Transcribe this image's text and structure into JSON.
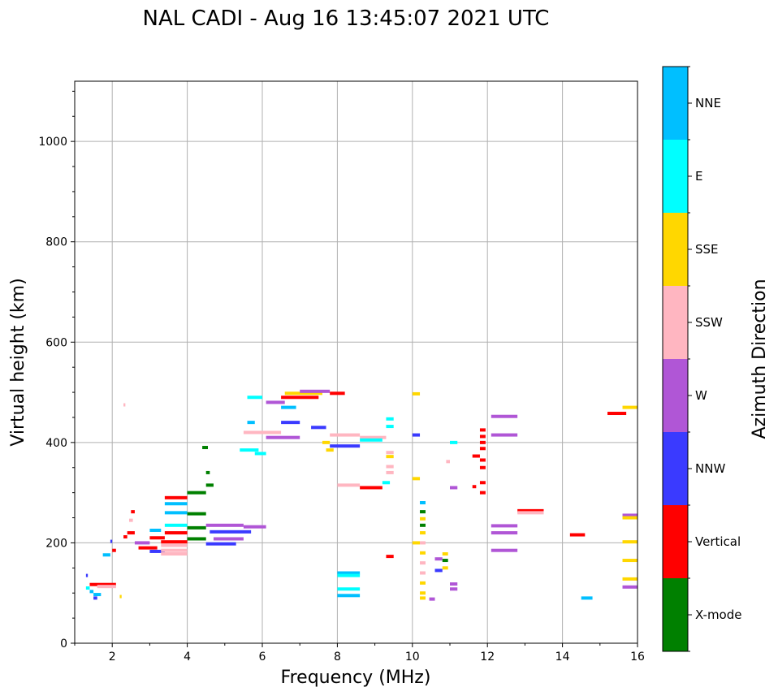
{
  "chart_data": {
    "type": "scatter",
    "title": "NAL CADI - Aug 16 13:45:07 2021 UTC",
    "xlabel": "Frequency (MHz)",
    "ylabel": "Virtual height (km)",
    "xlim": [
      1,
      16
    ],
    "ylim": [
      0,
      1120
    ],
    "x_ticks": [
      2,
      4,
      6,
      8,
      10,
      12,
      14,
      16
    ],
    "y_ticks": [
      0,
      200,
      400,
      600,
      800,
      1000
    ],
    "grid": true,
    "colorbar": {
      "label": "Azimuth Direction",
      "categories": [
        "X-mode",
        "Vertical",
        "NNW",
        "W",
        "SSW",
        "SSE",
        "E",
        "NNE"
      ],
      "colors": {
        "X-mode": "#008000",
        "Vertical": "#ff0000",
        "NNW": "#3a3aff",
        "W": "#b056d6",
        "SSW": "#ffb6c1",
        "SSE": "#ffd700",
        "E": "#00ffff",
        "NNE": "#00bfff"
      }
    },
    "echoes": [
      {
        "f0": 1.3,
        "f1": 1.35,
        "h": 135,
        "dir": "NNW"
      },
      {
        "f0": 1.3,
        "f1": 1.4,
        "h": 110,
        "dir": "E"
      },
      {
        "f0": 1.4,
        "f1": 1.5,
        "h": 103,
        "dir": "NNE"
      },
      {
        "f0": 1.5,
        "f1": 1.7,
        "h": 97,
        "dir": "NNE"
      },
      {
        "f0": 1.4,
        "f1": 2.1,
        "h": 117,
        "dir": "Vertical"
      },
      {
        "f0": 1.6,
        "f1": 2.1,
        "h": 113,
        "dir": "SSW"
      },
      {
        "f0": 1.5,
        "f1": 1.6,
        "h": 90,
        "dir": "NNW"
      },
      {
        "f0": 2.2,
        "f1": 2.25,
        "h": 93,
        "dir": "SSE"
      },
      {
        "f0": 1.75,
        "f1": 1.95,
        "h": 176,
        "dir": "NNE"
      },
      {
        "f0": 1.95,
        "f1": 2.0,
        "h": 203,
        "dir": "NNW"
      },
      {
        "f0": 2.0,
        "f1": 2.1,
        "h": 185,
        "dir": "Vertical"
      },
      {
        "f0": 2.3,
        "f1": 2.35,
        "h": 475,
        "dir": "SSW"
      },
      {
        "f0": 2.3,
        "f1": 2.4,
        "h": 212,
        "dir": "Vertical"
      },
      {
        "f0": 2.4,
        "f1": 2.6,
        "h": 220,
        "dir": "Vertical"
      },
      {
        "f0": 2.45,
        "f1": 2.55,
        "h": 245,
        "dir": "SSW"
      },
      {
        "f0": 2.5,
        "f1": 2.6,
        "h": 262,
        "dir": "Vertical"
      },
      {
        "f0": 2.6,
        "f1": 3.0,
        "h": 200,
        "dir": "W"
      },
      {
        "f0": 2.7,
        "f1": 3.2,
        "h": 190,
        "dir": "Vertical"
      },
      {
        "f0": 3.0,
        "f1": 3.3,
        "h": 225,
        "dir": "NNE"
      },
      {
        "f0": 3.0,
        "f1": 3.4,
        "h": 210,
        "dir": "Vertical"
      },
      {
        "f0": 3.0,
        "f1": 3.4,
        "h": 183,
        "dir": "NNW"
      },
      {
        "f0": 3.3,
        "f1": 4.0,
        "h": 202,
        "dir": "Vertical"
      },
      {
        "f0": 3.3,
        "f1": 4.0,
        "h": 195,
        "dir": "SSW"
      },
      {
        "f0": 3.3,
        "f1": 4.0,
        "h": 185,
        "dir": "SSW"
      },
      {
        "f0": 3.3,
        "f1": 4.0,
        "h": 178,
        "dir": "SSW"
      },
      {
        "f0": 3.4,
        "f1": 4.0,
        "h": 220,
        "dir": "Vertical"
      },
      {
        "f0": 3.4,
        "f1": 4.0,
        "h": 235,
        "dir": "E"
      },
      {
        "f0": 3.4,
        "f1": 4.0,
        "h": 260,
        "dir": "NNE"
      },
      {
        "f0": 3.4,
        "f1": 4.0,
        "h": 278,
        "dir": "NNE"
      },
      {
        "f0": 3.4,
        "f1": 4.0,
        "h": 290,
        "dir": "Vertical"
      },
      {
        "f0": 4.0,
        "f1": 4.5,
        "h": 300,
        "dir": "X-mode"
      },
      {
        "f0": 4.0,
        "f1": 4.5,
        "h": 258,
        "dir": "X-mode"
      },
      {
        "f0": 4.0,
        "f1": 4.5,
        "h": 230,
        "dir": "X-mode"
      },
      {
        "f0": 4.0,
        "f1": 4.5,
        "h": 208,
        "dir": "X-mode"
      },
      {
        "f0": 4.4,
        "f1": 4.55,
        "h": 390,
        "dir": "X-mode"
      },
      {
        "f0": 4.5,
        "f1": 4.7,
        "h": 315,
        "dir": "X-mode"
      },
      {
        "f0": 4.5,
        "f1": 4.6,
        "h": 340,
        "dir": "X-mode"
      },
      {
        "f0": 4.5,
        "f1": 5.5,
        "h": 235,
        "dir": "W"
      },
      {
        "f0": 4.6,
        "f1": 5.7,
        "h": 222,
        "dir": "NNW"
      },
      {
        "f0": 4.7,
        "f1": 5.5,
        "h": 208,
        "dir": "W"
      },
      {
        "f0": 4.5,
        "f1": 5.3,
        "h": 198,
        "dir": "NNW"
      },
      {
        "f0": 5.5,
        "f1": 6.1,
        "h": 232,
        "dir": "W"
      },
      {
        "f0": 5.4,
        "f1": 5.9,
        "h": 385,
        "dir": "E"
      },
      {
        "f0": 5.6,
        "f1": 5.8,
        "h": 440,
        "dir": "NNE"
      },
      {
        "f0": 5.8,
        "f1": 6.1,
        "h": 378,
        "dir": "E"
      },
      {
        "f0": 5.6,
        "f1": 6.0,
        "h": 490,
        "dir": "E"
      },
      {
        "f0": 5.5,
        "f1": 6.5,
        "h": 420,
        "dir": "SSW"
      },
      {
        "f0": 6.1,
        "f1": 7.0,
        "h": 410,
        "dir": "W"
      },
      {
        "f0": 6.1,
        "f1": 6.6,
        "h": 480,
        "dir": "W"
      },
      {
        "f0": 6.5,
        "f1": 6.9,
        "h": 470,
        "dir": "NNE"
      },
      {
        "f0": 6.5,
        "f1": 7.0,
        "h": 440,
        "dir": "NNW"
      },
      {
        "f0": 6.5,
        "f1": 7.5,
        "h": 490,
        "dir": "Vertical"
      },
      {
        "f0": 6.6,
        "f1": 7.6,
        "h": 498,
        "dir": "SSE"
      },
      {
        "f0": 7.0,
        "f1": 7.8,
        "h": 502,
        "dir": "W"
      },
      {
        "f0": 7.3,
        "f1": 7.7,
        "h": 430,
        "dir": "NNW"
      },
      {
        "f0": 7.6,
        "f1": 7.8,
        "h": 400,
        "dir": "SSE"
      },
      {
        "f0": 7.8,
        "f1": 8.2,
        "h": 498,
        "dir": "Vertical"
      },
      {
        "f0": 7.7,
        "f1": 7.9,
        "h": 385,
        "dir": "SSE"
      },
      {
        "f0": 7.8,
        "f1": 8.6,
        "h": 415,
        "dir": "SSW"
      },
      {
        "f0": 7.8,
        "f1": 8.6,
        "h": 393,
        "dir": "NNW"
      },
      {
        "f0": 8.6,
        "f1": 9.3,
        "h": 410,
        "dir": "SSW"
      },
      {
        "f0": 8.6,
        "f1": 9.2,
        "h": 405,
        "dir": "E"
      },
      {
        "f0": 8.0,
        "f1": 8.6,
        "h": 315,
        "dir": "SSW"
      },
      {
        "f0": 8.6,
        "f1": 9.2,
        "h": 310,
        "dir": "Vertical"
      },
      {
        "f0": 8.0,
        "f1": 8.6,
        "h": 140,
        "dir": "NNE"
      },
      {
        "f0": 8.0,
        "f1": 8.6,
        "h": 135,
        "dir": "E"
      },
      {
        "f0": 8.0,
        "f1": 8.6,
        "h": 108,
        "dir": "E"
      },
      {
        "f0": 8.0,
        "f1": 8.6,
        "h": 95,
        "dir": "NNE"
      },
      {
        "f0": 9.2,
        "f1": 9.4,
        "h": 320,
        "dir": "E"
      },
      {
        "f0": 9.3,
        "f1": 9.5,
        "h": 447,
        "dir": "E"
      },
      {
        "f0": 9.3,
        "f1": 9.5,
        "h": 432,
        "dir": "E"
      },
      {
        "f0": 9.3,
        "f1": 9.5,
        "h": 380,
        "dir": "SSW"
      },
      {
        "f0": 9.3,
        "f1": 9.5,
        "h": 372,
        "dir": "SSE"
      },
      {
        "f0": 9.3,
        "f1": 9.5,
        "h": 352,
        "dir": "SSW"
      },
      {
        "f0": 9.3,
        "f1": 9.5,
        "h": 340,
        "dir": "SSW"
      },
      {
        "f0": 9.3,
        "f1": 9.5,
        "h": 173,
        "dir": "Vertical"
      },
      {
        "f0": 10.0,
        "f1": 10.2,
        "h": 497,
        "dir": "SSE"
      },
      {
        "f0": 10.0,
        "f1": 10.2,
        "h": 415,
        "dir": "NNW"
      },
      {
        "f0": 10.0,
        "f1": 10.2,
        "h": 328,
        "dir": "SSE"
      },
      {
        "f0": 10.0,
        "f1": 10.2,
        "h": 200,
        "dir": "SSE"
      },
      {
        "f0": 10.2,
        "f1": 10.35,
        "h": 280,
        "dir": "NNE"
      },
      {
        "f0": 10.2,
        "f1": 10.35,
        "h": 262,
        "dir": "X-mode"
      },
      {
        "f0": 10.2,
        "f1": 10.35,
        "h": 248,
        "dir": "SSE"
      },
      {
        "f0": 10.2,
        "f1": 10.35,
        "h": 235,
        "dir": "X-mode"
      },
      {
        "f0": 10.2,
        "f1": 10.35,
        "h": 220,
        "dir": "SSE"
      },
      {
        "f0": 10.2,
        "f1": 10.35,
        "h": 200,
        "dir": "SSW"
      },
      {
        "f0": 10.2,
        "f1": 10.35,
        "h": 180,
        "dir": "SSE"
      },
      {
        "f0": 10.2,
        "f1": 10.35,
        "h": 160,
        "dir": "SSW"
      },
      {
        "f0": 10.2,
        "f1": 10.35,
        "h": 140,
        "dir": "SSW"
      },
      {
        "f0": 10.2,
        "f1": 10.35,
        "h": 120,
        "dir": "SSE"
      },
      {
        "f0": 10.2,
        "f1": 10.35,
        "h": 100,
        "dir": "SSE"
      },
      {
        "f0": 10.2,
        "f1": 10.35,
        "h": 90,
        "dir": "SSE"
      },
      {
        "f0": 10.45,
        "f1": 10.6,
        "h": 88,
        "dir": "W"
      },
      {
        "f0": 10.6,
        "f1": 10.8,
        "h": 168,
        "dir": "W"
      },
      {
        "f0": 10.6,
        "f1": 10.8,
        "h": 145,
        "dir": "NNW"
      },
      {
        "f0": 10.8,
        "f1": 10.95,
        "h": 178,
        "dir": "SSE"
      },
      {
        "f0": 10.8,
        "f1": 10.95,
        "h": 165,
        "dir": "X-mode"
      },
      {
        "f0": 10.8,
        "f1": 10.95,
        "h": 150,
        "dir": "SSE"
      },
      {
        "f0": 10.9,
        "f1": 11.0,
        "h": 362,
        "dir": "SSW"
      },
      {
        "f0": 11.0,
        "f1": 11.2,
        "h": 400,
        "dir": "E"
      },
      {
        "f0": 11.0,
        "f1": 11.2,
        "h": 310,
        "dir": "W"
      },
      {
        "f0": 11.0,
        "f1": 11.2,
        "h": 118,
        "dir": "W"
      },
      {
        "f0": 11.0,
        "f1": 11.2,
        "h": 108,
        "dir": "W"
      },
      {
        "f0": 11.6,
        "f1": 11.8,
        "h": 373,
        "dir": "Vertical"
      },
      {
        "f0": 11.6,
        "f1": 11.7,
        "h": 312,
        "dir": "Vertical"
      },
      {
        "f0": 11.8,
        "f1": 11.95,
        "h": 425,
        "dir": "Vertical"
      },
      {
        "f0": 11.8,
        "f1": 11.95,
        "h": 412,
        "dir": "Vertical"
      },
      {
        "f0": 11.8,
        "f1": 11.95,
        "h": 400,
        "dir": "Vertical"
      },
      {
        "f0": 11.8,
        "f1": 11.95,
        "h": 388,
        "dir": "Vertical"
      },
      {
        "f0": 11.8,
        "f1": 11.95,
        "h": 365,
        "dir": "Vertical"
      },
      {
        "f0": 11.8,
        "f1": 11.95,
        "h": 350,
        "dir": "Vertical"
      },
      {
        "f0": 11.8,
        "f1": 11.95,
        "h": 320,
        "dir": "Vertical"
      },
      {
        "f0": 11.8,
        "f1": 11.95,
        "h": 300,
        "dir": "Vertical"
      },
      {
        "f0": 12.1,
        "f1": 12.8,
        "h": 452,
        "dir": "W"
      },
      {
        "f0": 12.1,
        "f1": 12.8,
        "h": 415,
        "dir": "W"
      },
      {
        "f0": 12.1,
        "f1": 12.8,
        "h": 234,
        "dir": "W"
      },
      {
        "f0": 12.1,
        "f1": 12.8,
        "h": 220,
        "dir": "W"
      },
      {
        "f0": 12.1,
        "f1": 12.8,
        "h": 185,
        "dir": "W"
      },
      {
        "f0": 12.8,
        "f1": 13.5,
        "h": 264,
        "dir": "Vertical"
      },
      {
        "f0": 12.8,
        "f1": 13.5,
        "h": 260,
        "dir": "SSW"
      },
      {
        "f0": 14.2,
        "f1": 14.6,
        "h": 216,
        "dir": "Vertical"
      },
      {
        "f0": 14.5,
        "f1": 14.8,
        "h": 90,
        "dir": "NNE"
      },
      {
        "f0": 15.2,
        "f1": 15.7,
        "h": 458,
        "dir": "Vertical"
      },
      {
        "f0": 15.6,
        "f1": 16.0,
        "h": 470,
        "dir": "SSE"
      },
      {
        "f0": 15.6,
        "f1": 16.0,
        "h": 255,
        "dir": "W"
      },
      {
        "f0": 15.6,
        "f1": 16.0,
        "h": 250,
        "dir": "SSE"
      },
      {
        "f0": 15.6,
        "f1": 16.0,
        "h": 202,
        "dir": "SSE"
      },
      {
        "f0": 15.6,
        "f1": 16.0,
        "h": 165,
        "dir": "SSE"
      },
      {
        "f0": 15.6,
        "f1": 16.0,
        "h": 128,
        "dir": "SSE"
      },
      {
        "f0": 15.6,
        "f1": 16.0,
        "h": 112,
        "dir": "W"
      }
    ]
  }
}
